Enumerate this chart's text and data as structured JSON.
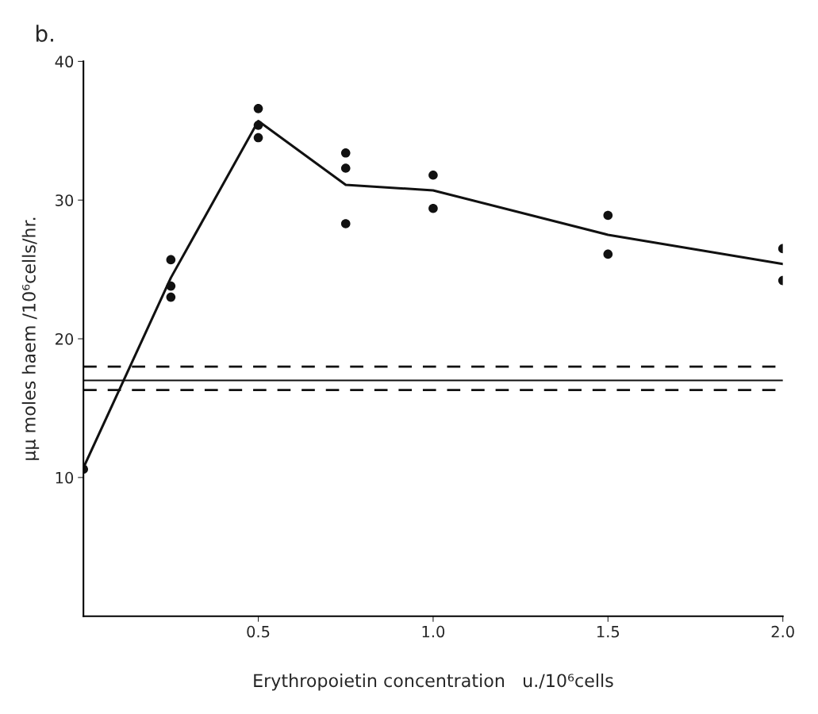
{
  "chart_data": {
    "type": "scatter",
    "title": "b.",
    "xlabel": "Erythropoietin concentration   u./10⁶cells",
    "ylabel": "μμ moles haem /10⁶cells/hr.",
    "xlim": [
      0,
      2.0
    ],
    "ylim": [
      0,
      40
    ],
    "xticks": [
      0.5,
      {
        "value": 1.0,
        "label": "1.0"
      },
      1.5,
      {
        "value": 2.0,
        "label": "2.0"
      }
    ],
    "yticks": [
      10,
      20,
      30,
      40
    ],
    "series": [
      {
        "color": "#111111",
        "marker": "circle",
        "x": [
          0,
          0.25,
          0.25,
          0.25,
          0.5,
          0.5,
          0.5,
          0.75,
          0.75,
          0.75,
          1.0,
          1.0,
          1.5,
          1.5,
          2.0,
          2.0
        ],
        "values": [
          10.6,
          25.7,
          23.8,
          23.0,
          36.6,
          35.4,
          34.5,
          33.4,
          32.3,
          28.3,
          31.8,
          29.4,
          28.9,
          26.1,
          26.5,
          24.2
        ]
      },
      {
        "type": "line",
        "color": "#111111",
        "marker": "none",
        "line_style": "solid",
        "x": [
          0,
          0.25,
          0.5,
          0.75,
          1.0,
          1.5,
          2.0
        ],
        "values": [
          10.7,
          24.4,
          35.7,
          31.1,
          30.7,
          27.5,
          25.4
        ]
      }
    ],
    "ref_lines": [
      {
        "axis": "y",
        "value": 17.0,
        "color": "#111111",
        "line_style": "solid"
      },
      {
        "axis": "y",
        "value": 18.0,
        "color": "#111111",
        "line_style": "dashed"
      },
      {
        "axis": "y",
        "value": 16.3,
        "color": "#111111",
        "line_style": "dashed"
      }
    ],
    "grid": false,
    "legend": false
  }
}
